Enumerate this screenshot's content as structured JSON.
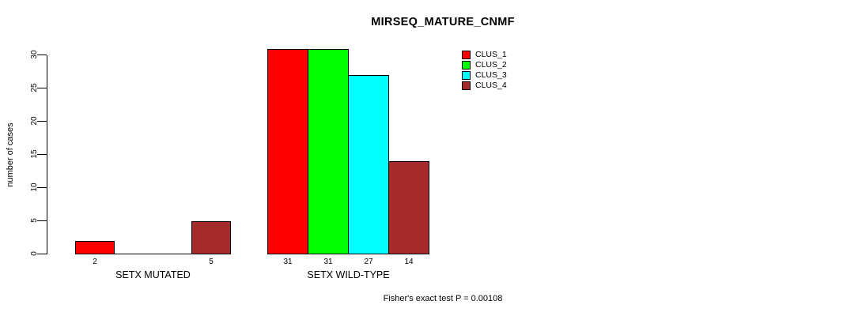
{
  "chart_data": {
    "type": "bar",
    "title": "MIRSEQ_MATURE_CNMF",
    "xlabel": "",
    "ylabel": "number of cases",
    "groups": [
      "SETX MUTATED",
      "SETX WILD-TYPE"
    ],
    "series": [
      {
        "name": "CLUS_1",
        "color": "#ff0000",
        "values": [
          2,
          31
        ]
      },
      {
        "name": "CLUS_2",
        "color": "#00ff00",
        "values": [
          0,
          31
        ]
      },
      {
        "name": "CLUS_3",
        "color": "#00ffff",
        "values": [
          0,
          27
        ]
      },
      {
        "name": "CLUS_4",
        "color": "#a52a2a",
        "values": [
          5,
          14
        ]
      }
    ],
    "bar_value_labels": [
      [
        "2",
        "",
        "",
        "5"
      ],
      [
        "31",
        "31",
        "27",
        "14"
      ]
    ],
    "yticks": [
      0,
      5,
      10,
      15,
      20,
      25,
      30
    ],
    "ylim": [
      0,
      31
    ],
    "grid": false,
    "legend_position": "top-right-of-plot",
    "legend_entries": [
      "CLUS_1",
      "CLUS_2",
      "CLUS_3",
      "CLUS_4"
    ],
    "annotation": "Fisher's exact test P = 0.00108",
    "axis_color": "#000000",
    "background_color": "#ffffff"
  }
}
